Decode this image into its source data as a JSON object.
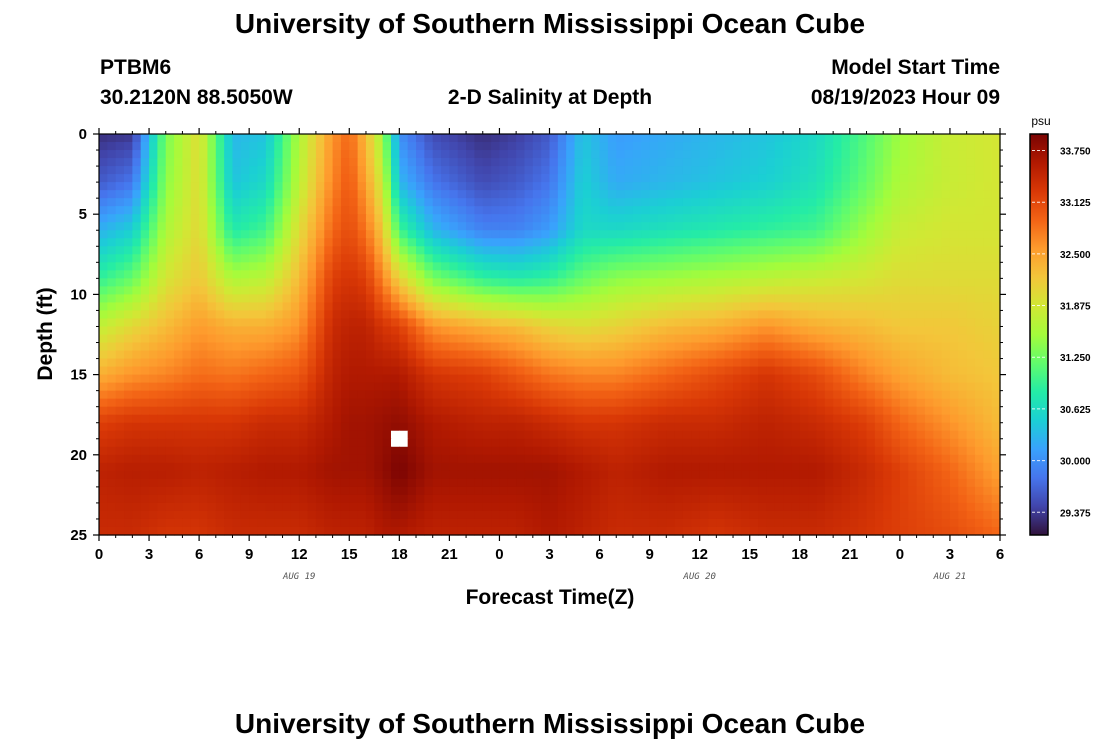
{
  "header": {
    "title": "University of Southern Mississippi Ocean Cube",
    "station_id": "PTBM6",
    "station_coords": "30.2120N  88.5050W",
    "plot_title": "2-D Salinity at Depth",
    "model_label": "Model Start Time",
    "model_time": "08/19/2023 Hour 09"
  },
  "footer": {
    "title": "University of Southern Mississippi Ocean Cube"
  },
  "chart_data": {
    "type": "heatmap",
    "title": "2-D Salinity at Depth",
    "xlabel": "Forecast Time(Z)",
    "ylabel": "Depth (ft)",
    "x_range_hours": [
      0,
      54
    ],
    "y_range_ft": [
      0,
      25
    ],
    "x_ticks": [
      "0",
      "3",
      "6",
      "9",
      "12",
      "15",
      "18",
      "21",
      "0",
      "3",
      "6",
      "9",
      "12",
      "15",
      "18",
      "21",
      "0",
      "3",
      "6"
    ],
    "y_ticks": [
      "0",
      "5",
      "10",
      "15",
      "20",
      "25"
    ],
    "date_labels": [
      {
        "text": "AUG 19",
        "hour": 12
      },
      {
        "text": "AUG 20",
        "hour": 36
      },
      {
        "text": "AUG 21",
        "hour": 51
      }
    ],
    "colorbar": {
      "unit": "psu",
      "min": 29.1,
      "max": 33.95,
      "ticks": [
        "33.750",
        "33.125",
        "32.500",
        "31.875",
        "31.250",
        "30.625",
        "30.000",
        "29.375"
      ],
      "colors": [
        "#30123b",
        "#4145ab",
        "#4675ed",
        "#39a2fc",
        "#1bcfd4",
        "#24eca6",
        "#61fc6c",
        "#a4fc3b",
        "#d1e834",
        "#f3c63a",
        "#fe9b2d",
        "#f36315",
        "#d93806",
        "#b11901",
        "#7a0403"
      ]
    },
    "missing_cell": {
      "hour": 18,
      "depth_ft": 19
    },
    "profiles": [
      {
        "hour": 0,
        "salinity": [
          29.3,
          29.6,
          30.25,
          30.9,
          31.75,
          32.4,
          33.2,
          33.5,
          33.4
        ]
      },
      {
        "hour": 2,
        "salinity": [
          29.35,
          29.8,
          30.5,
          31.2,
          32.05,
          32.6,
          33.3,
          33.55,
          33.4
        ]
      },
      {
        "hour": 4,
        "salinity": [
          31.3,
          31.4,
          31.6,
          31.9,
          32.3,
          32.7,
          33.3,
          33.55,
          33.3
        ]
      },
      {
        "hour": 6,
        "salinity": [
          32.0,
          32.0,
          32.05,
          32.2,
          32.55,
          32.85,
          33.3,
          33.5,
          33.3
        ]
      },
      {
        "hour": 8,
        "salinity": [
          30.3,
          30.4,
          30.8,
          31.6,
          32.4,
          32.8,
          33.3,
          33.55,
          33.4
        ]
      },
      {
        "hour": 10,
        "salinity": [
          30.4,
          30.6,
          31.0,
          31.7,
          32.4,
          32.9,
          33.4,
          33.6,
          33.4
        ]
      },
      {
        "hour": 12,
        "salinity": [
          31.6,
          31.7,
          32.0,
          32.3,
          32.6,
          33.0,
          33.4,
          33.6,
          33.4
        ]
      },
      {
        "hour": 14,
        "salinity": [
          32.6,
          32.7,
          32.9,
          33.2,
          33.4,
          33.5,
          33.6,
          33.7,
          33.5
        ]
      },
      {
        "hour": 15,
        "salinity": [
          32.9,
          33.0,
          33.1,
          33.3,
          33.5,
          33.6,
          33.7,
          33.7,
          33.5
        ]
      },
      {
        "hour": 16,
        "salinity": [
          32.3,
          32.5,
          32.8,
          33.2,
          33.5,
          33.6,
          33.7,
          33.7,
          33.5
        ]
      },
      {
        "hour": 17,
        "salinity": [
          31.5,
          31.8,
          32.2,
          32.7,
          33.3,
          33.6,
          33.75,
          33.8,
          33.6
        ]
      },
      {
        "hour": 18,
        "salinity": [
          30.0,
          30.3,
          31.0,
          32.1,
          33.2,
          33.6,
          33.8,
          33.95,
          33.6
        ]
      },
      {
        "hour": 20,
        "salinity": [
          29.5,
          29.8,
          30.3,
          31.3,
          32.6,
          33.3,
          33.6,
          33.7,
          33.5
        ]
      },
      {
        "hour": 23,
        "salinity": [
          29.3,
          29.5,
          29.9,
          30.9,
          32.4,
          33.2,
          33.5,
          33.7,
          33.5
        ]
      },
      {
        "hour": 25,
        "salinity": [
          29.4,
          29.6,
          29.9,
          30.8,
          32.3,
          33.0,
          33.5,
          33.7,
          33.5
        ]
      },
      {
        "hour": 27,
        "salinity": [
          29.6,
          29.8,
          30.1,
          30.9,
          32.1,
          32.8,
          33.4,
          33.7,
          33.6
        ]
      },
      {
        "hour": 29,
        "salinity": [
          30.4,
          30.5,
          30.6,
          31.2,
          32.0,
          32.7,
          33.3,
          33.6,
          33.5
        ]
      },
      {
        "hour": 31,
        "salinity": [
          30.1,
          30.2,
          30.6,
          31.4,
          32.1,
          32.7,
          33.3,
          33.5,
          33.4
        ]
      },
      {
        "hour": 34,
        "salinity": [
          30.2,
          30.3,
          30.7,
          31.5,
          32.3,
          32.9,
          33.4,
          33.6,
          33.4
        ]
      },
      {
        "hour": 37,
        "salinity": [
          30.3,
          30.4,
          30.8,
          31.6,
          32.4,
          33.1,
          33.4,
          33.6,
          33.3
        ]
      },
      {
        "hour": 40,
        "salinity": [
          30.4,
          30.5,
          30.9,
          31.7,
          32.6,
          33.3,
          33.5,
          33.6,
          33.4
        ]
      },
      {
        "hour": 43,
        "salinity": [
          30.6,
          30.7,
          31.0,
          31.8,
          32.4,
          33.1,
          33.4,
          33.6,
          33.4
        ]
      },
      {
        "hour": 46,
        "salinity": [
          31.1,
          31.2,
          31.5,
          31.9,
          32.3,
          32.7,
          33.2,
          33.4,
          33.3
        ]
      },
      {
        "hour": 48,
        "salinity": [
          31.5,
          31.6,
          31.8,
          32.0,
          32.2,
          32.5,
          32.9,
          33.2,
          33.2
        ]
      },
      {
        "hour": 51,
        "salinity": [
          31.8,
          31.8,
          31.9,
          32.0,
          32.2,
          32.3,
          32.6,
          32.9,
          33.1
        ]
      },
      {
        "hour": 54,
        "salinity": [
          31.9,
          31.9,
          31.9,
          32.0,
          32.1,
          32.2,
          32.3,
          32.5,
          32.9
        ]
      }
    ],
    "profile_depths_ft": [
      0,
      3,
      6,
      9,
      12,
      15,
      18,
      21,
      25
    ]
  }
}
